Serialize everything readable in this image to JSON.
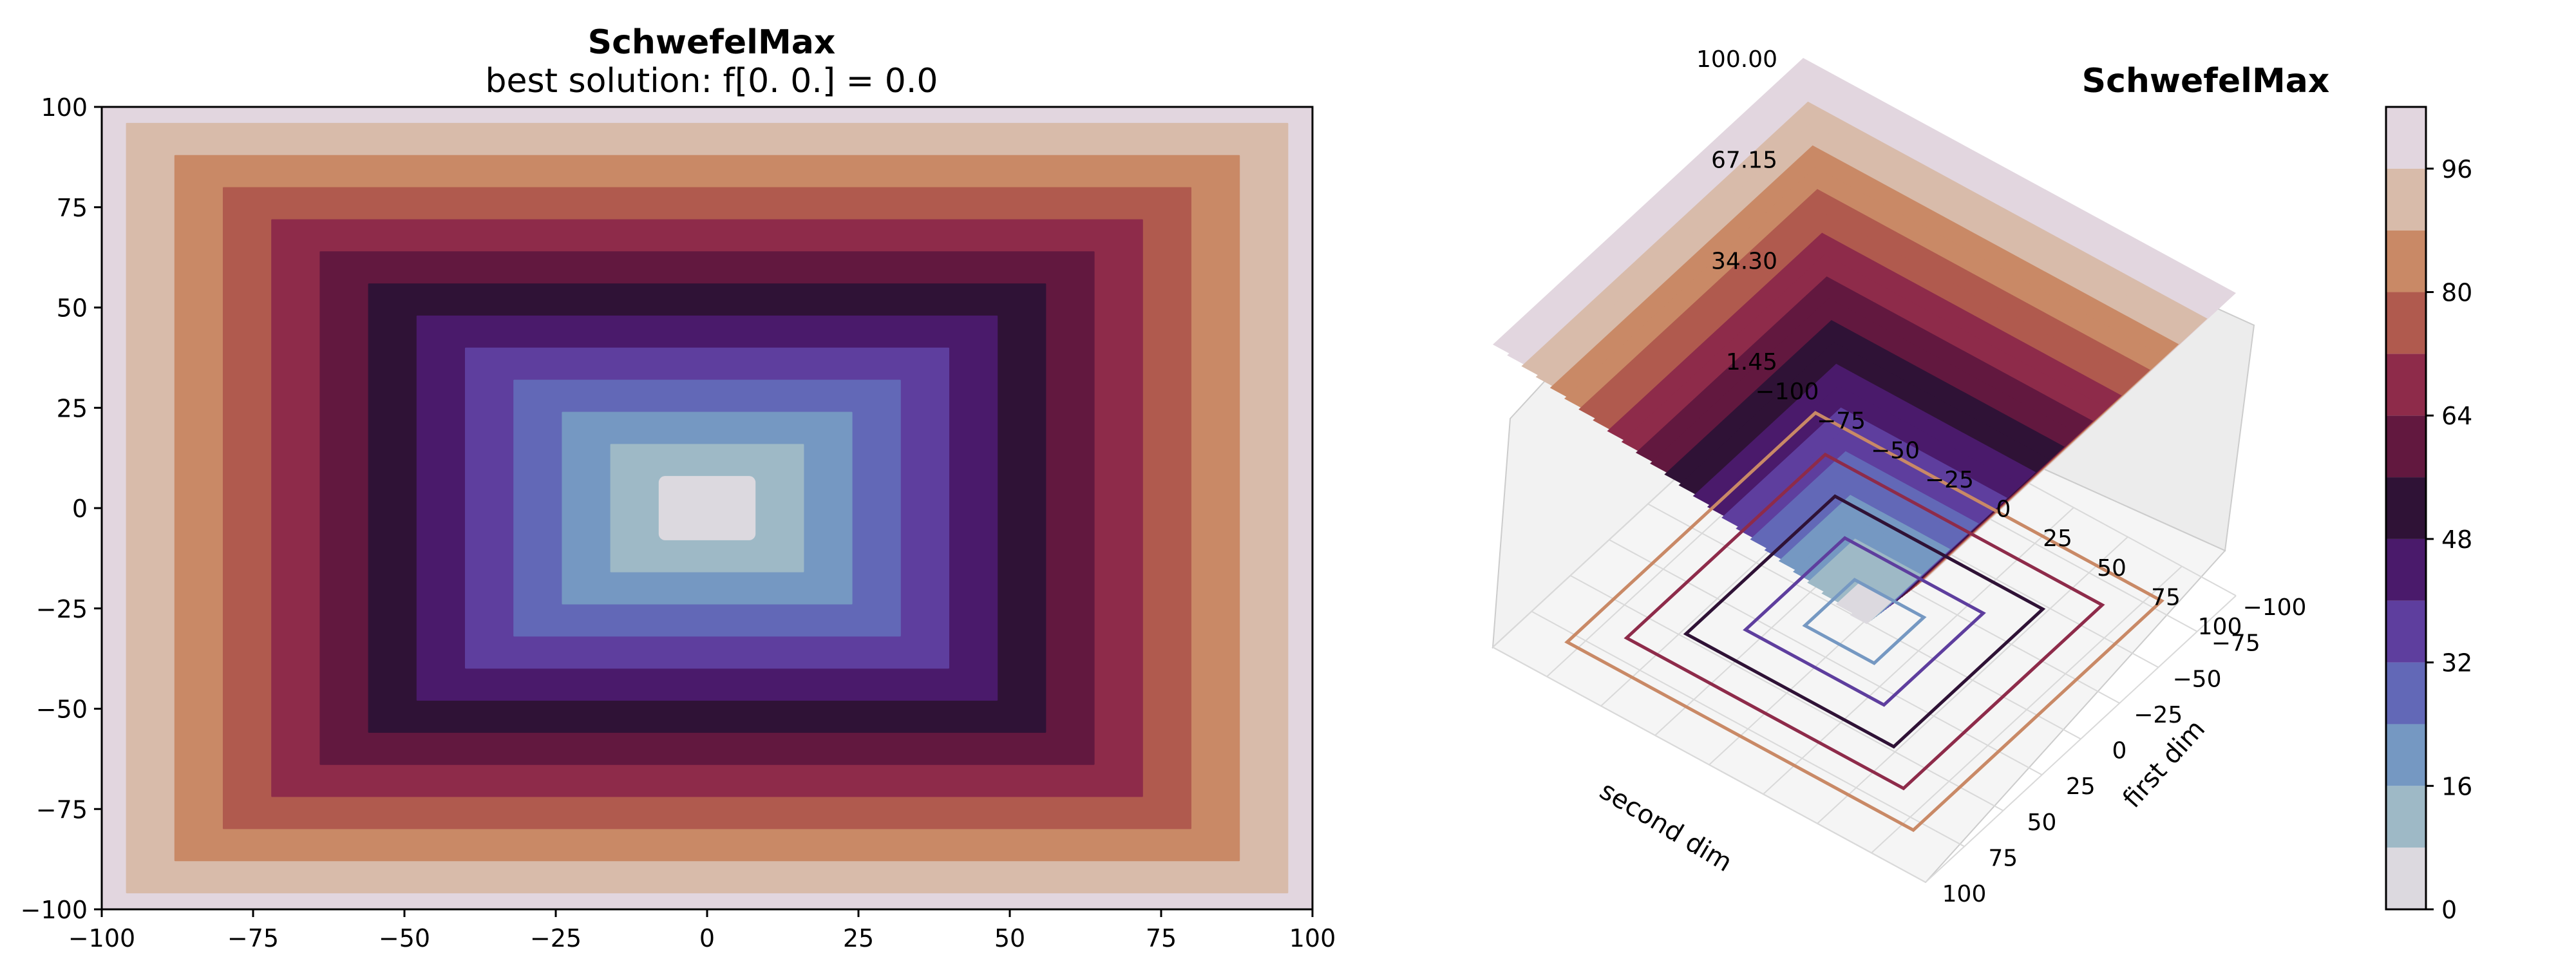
{
  "chart_data": [
    {
      "type": "contour",
      "title": "SchwefelMax",
      "subtitle": "best solution: f[0. 0.] = 0.0",
      "xlabel": "",
      "ylabel": "",
      "xlim": [
        -100,
        100
      ],
      "ylim": [
        -100,
        100
      ],
      "x_ticks": [
        "−100",
        "−75",
        "−50",
        "−25",
        "0",
        "25",
        "50",
        "75",
        "100"
      ],
      "y_ticks": [
        "−100",
        "−75",
        "−50",
        "−25",
        "0",
        "25",
        "50",
        "75",
        "100"
      ],
      "function": "max(|x|, |y|)",
      "levels": [
        0,
        8,
        16,
        24,
        32,
        40,
        48,
        56,
        64,
        72,
        80,
        88,
        96,
        104
      ],
      "level_colors": [
        "#dcd9df",
        "#9eb9c6",
        "#7598c2",
        "#6268b7",
        "#5e3e9e",
        "#4a1a6b",
        "#2f1236",
        "#62183f",
        "#8e2b4a",
        "#b05a4e",
        "#c98966",
        "#d8bbaa",
        "#e2d6df"
      ]
    },
    {
      "type": "surface3d",
      "title": "SchwefelMax",
      "xlabel": "first dim",
      "ylabel": "second dim",
      "x_ticks": [
        "−100",
        "−75",
        "−50",
        "−25",
        "0",
        "25",
        "50",
        "75",
        "100"
      ],
      "y_ticks": [
        "−100",
        "−75",
        "−50",
        "−25",
        "0",
        "25",
        "50",
        "75",
        "100"
      ],
      "z_ticks": [
        "1.45",
        "34.30",
        "67.15",
        "100.00"
      ],
      "zlim": [
        1.45,
        100
      ],
      "floor_contour_levels": [
        16,
        32,
        48,
        64,
        80
      ]
    },
    {
      "type": "colorbar",
      "ticks": [
        "0",
        "16",
        "32",
        "48",
        "64",
        "80",
        "96"
      ],
      "range": [
        0,
        104
      ]
    }
  ]
}
